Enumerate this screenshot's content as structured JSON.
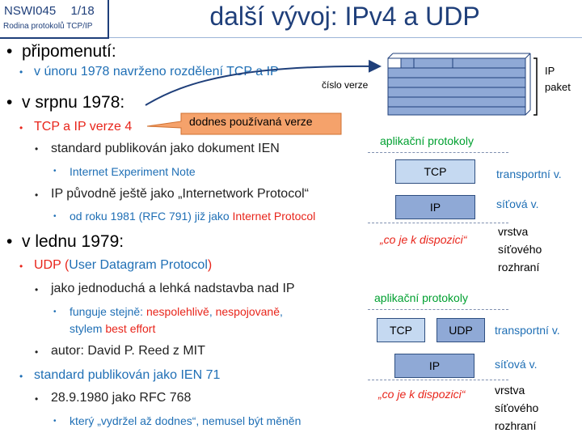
{
  "header": {
    "course_code": "NSWI045",
    "slide_number": "1/18",
    "course_name": "Rodina protokolů TCP/IP",
    "title": "další vývoj: IPv4 a UDP"
  },
  "bullets": {
    "b1": "připomenutí:",
    "b1_1": "v únoru 1978 navrženo rozdělení  TCP a IP",
    "b2": "v srpnu 1978:",
    "b2_1": "TCP a IP verze 4",
    "b2_1_1": "standard publikován jako dokument IEN",
    "b2_1_1_1": "Internet Experiment  Note",
    "b2_1_2": "IP původně ještě jako „Internetwork Protocol“",
    "b2_1_2_1a": "od roku 1981 (RFC 791) již jako ",
    "b2_1_2_1b": "Internet Protocol",
    "b3": "v lednu 1979:",
    "b3_1a": "UDP (",
    "b3_1b": "User Datagram Protocol",
    "b3_1c": ")",
    "b3_1_1": "jako jednoduchá a lehká nadstavba nad IP",
    "b3_1_1_1a": "funguje stejně: ",
    "b3_1_1_1b": "nespolehlivě",
    "b3_1_1_1c": ", ",
    "b3_1_1_1d": "nespojovaně",
    "b3_1_1_1e": ",",
    "b3_1_1_1f": "stylem ",
    "b3_1_1_1g": "best effort",
    "b3_1_2": "autor: David P. Reed z MIT",
    "b3_2": "standard publikován jako IEN 71",
    "b3_2_1": "28.9.1980 jako RFC 768",
    "b3_2_1_1": "který „vydržel až dodnes“, nemusel být měněn"
  },
  "packet": {
    "version_label": "číslo verze",
    "ip_label": "IP",
    "packet_label": "paket"
  },
  "callout": "dodnes používaná verze",
  "stack1": {
    "app": "aplikační protokoly",
    "tcp": "TCP",
    "transport": "transportní v.",
    "ip": "IP",
    "network": "síťová v.",
    "whatever": "„co je k dispozici“",
    "iface_1": "vrstva",
    "iface_2": "síťového",
    "iface_3": "rozhraní"
  },
  "stack2": {
    "app": "aplikační protokoly",
    "tcp": "TCP",
    "udp": "UDP",
    "transport": "transportní v.",
    "ip": "IP",
    "network": "síťová v.",
    "whatever": "„co je k dispozici“",
    "iface_1": "vrstva",
    "iface_2": "síťového",
    "iface_3": "rozhraní"
  },
  "colors": {
    "header_blue": "#1f3f7a",
    "text_blue": "#1f6fb5",
    "accent_red": "#e8251b",
    "green": "#00a030",
    "callout_fill": "#f5a26b",
    "box_tcp": "#c5d9f1",
    "box_ip": "#8fa9d6"
  }
}
